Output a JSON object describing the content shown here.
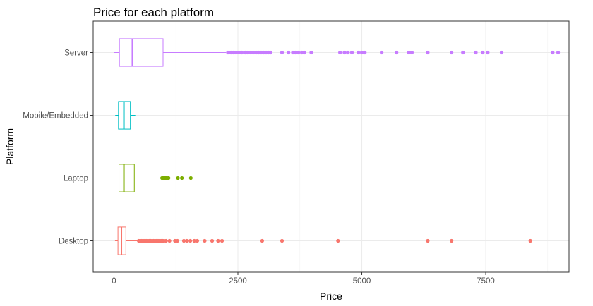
{
  "chart_data": {
    "type": "boxplot",
    "orientation": "horizontal",
    "title": "Price for each platform",
    "xlabel": "Price",
    "ylabel": "Platform",
    "xlim": [
      -420,
      9180
    ],
    "x_ticks": [
      0,
      2500,
      5000,
      7500
    ],
    "x_tick_labels": [
      "0",
      "2500",
      "5000",
      "7500"
    ],
    "grid": true,
    "legend": "none",
    "categories": [
      "Desktop",
      "Laptop",
      "Mobile/Embedded",
      "Server"
    ],
    "series": [
      {
        "category": "Desktop",
        "color": "#F8766D",
        "min": 20,
        "q1": 80,
        "median": 150,
        "q3": 240,
        "whisker_high": 480,
        "outliers": [
          500,
          530,
          560,
          590,
          620,
          650,
          680,
          710,
          740,
          770,
          800,
          830,
          860,
          890,
          920,
          950,
          980,
          1010,
          1050,
          1120,
          1230,
          1280,
          1410,
          1470,
          1540,
          1620,
          1680,
          1830,
          1980,
          2100,
          2180,
          2990,
          3390,
          4520,
          6330,
          6810,
          8400
        ]
      },
      {
        "category": "Laptop",
        "color": "#7CAE00",
        "min": 15,
        "q1": 100,
        "median": 200,
        "q3": 410,
        "whisker_high": 850,
        "outliers": [
          970,
          990,
          1010,
          1030,
          1050,
          1070,
          1100,
          1290,
          1370,
          1550
        ]
      },
      {
        "category": "Mobile/Embedded",
        "color": "#00BFC4",
        "min": 25,
        "q1": 90,
        "median": 200,
        "q3": 330,
        "whisker_high": 430,
        "outliers": []
      },
      {
        "category": "Server",
        "color": "#C77CFF",
        "min": 5,
        "q1": 110,
        "median": 370,
        "q3": 990,
        "whisker_high": 2260,
        "outliers": [
          2300,
          2360,
          2410,
          2460,
          2520,
          2580,
          2650,
          2700,
          2760,
          2810,
          2870,
          2920,
          2970,
          3020,
          3070,
          3120,
          3160,
          3390,
          3520,
          3610,
          3660,
          3720,
          3790,
          3840,
          3980,
          4560,
          4650,
          4720,
          4800,
          4930,
          5000,
          5060,
          5400,
          5700,
          5950,
          6010,
          6330,
          6810,
          7040,
          7300,
          7440,
          7540,
          7820,
          8850,
          8960
        ]
      }
    ]
  }
}
